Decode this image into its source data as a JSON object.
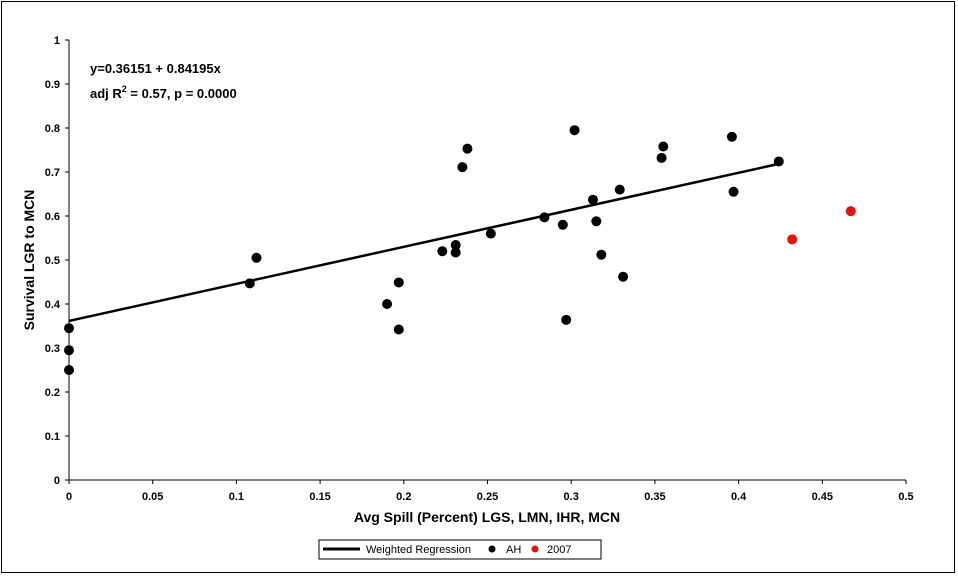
{
  "chart_data": {
    "type": "scatter",
    "xlabel": "Avg Spill (Percent) LGS, LMN, IHR, MCN",
    "ylabel": "Survival LGR to MCN",
    "xlim": [
      0,
      0.5
    ],
    "ylim": [
      0,
      1
    ],
    "x_ticks": [
      "0",
      "0.05",
      "0.1",
      "0.15",
      "0.2",
      "0.25",
      "0.3",
      "0.35",
      "0.4",
      "0.45",
      "0.5"
    ],
    "y_ticks": [
      "0",
      "0.1",
      "0.2",
      "0.3",
      "0.4",
      "0.5",
      "0.6",
      "0.7",
      "0.8",
      "0.9",
      "1"
    ],
    "annotation": {
      "line1": "y=0.36151 + 0.84195x",
      "line2_prefix": "adj R",
      "line2_sup": "2",
      "line2_suffix": " = 0.57, p = 0.0000"
    },
    "regression": {
      "name": "Weighted Regression",
      "intercept": 0.36151,
      "slope": 0.84195,
      "x_range": [
        0,
        0.425
      ],
      "color": "#000000"
    },
    "series": [
      {
        "name": "AH",
        "color": "#000000",
        "points": [
          [
            0.0,
            0.345
          ],
          [
            0.0,
            0.295
          ],
          [
            0.0,
            0.25
          ],
          [
            0.108,
            0.447
          ],
          [
            0.112,
            0.505
          ],
          [
            0.19,
            0.4
          ],
          [
            0.197,
            0.449
          ],
          [
            0.197,
            0.342
          ],
          [
            0.223,
            0.52
          ],
          [
            0.231,
            0.534
          ],
          [
            0.231,
            0.517
          ],
          [
            0.235,
            0.711
          ],
          [
            0.238,
            0.753
          ],
          [
            0.252,
            0.56
          ],
          [
            0.284,
            0.597
          ],
          [
            0.295,
            0.58
          ],
          [
            0.297,
            0.364
          ],
          [
            0.302,
            0.795
          ],
          [
            0.313,
            0.637
          ],
          [
            0.315,
            0.588
          ],
          [
            0.318,
            0.512
          ],
          [
            0.329,
            0.66
          ],
          [
            0.331,
            0.462
          ],
          [
            0.354,
            0.732
          ],
          [
            0.355,
            0.758
          ],
          [
            0.396,
            0.78
          ],
          [
            0.397,
            0.655
          ],
          [
            0.424,
            0.724
          ]
        ]
      },
      {
        "name": "2007",
        "color": "#e8120c",
        "points": [
          [
            0.432,
            0.547
          ],
          [
            0.467,
            0.611
          ]
        ]
      }
    ],
    "legend": {
      "position": "bottom",
      "entries": [
        "Weighted Regression",
        "AH",
        "2007"
      ]
    }
  }
}
